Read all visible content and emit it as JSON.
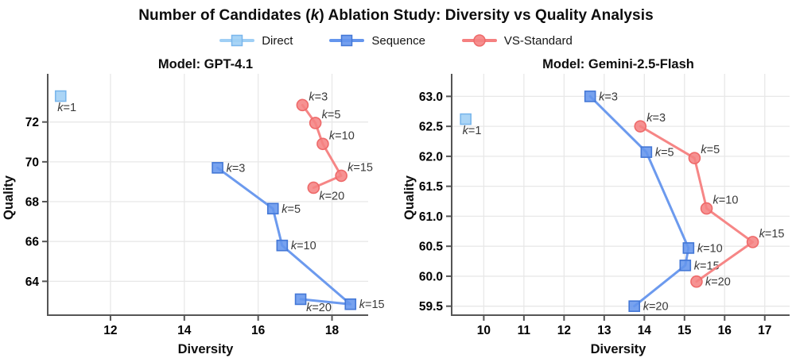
{
  "title": {
    "prefix": "Number of Candidates (",
    "italic": "k",
    "suffix": ") Ablation Study: Diversity vs Quality Analysis"
  },
  "legend": [
    {
      "label": "Direct",
      "marker": "square",
      "color_key": "direct"
    },
    {
      "label": "Sequence",
      "marker": "square",
      "color_key": "sequence"
    },
    {
      "label": "VS-Standard",
      "marker": "circle",
      "color_key": "vs"
    }
  ],
  "colors": {
    "direct": {
      "fill": "#9FCFF5",
      "edge": "#79B6EC",
      "line": "#9FCFF5"
    },
    "sequence": {
      "fill": "#6495ED",
      "edge": "#4377D6",
      "line": "#6495ED"
    },
    "vs": {
      "fill": "#F58383",
      "edge": "#EE6A6A",
      "line": "#F58080"
    },
    "grid": "#E8E8E8",
    "spine": "#555555",
    "tick_text": "#000000",
    "annotation_text": "#3A3A3A"
  },
  "chart_data": [
    {
      "type": "scatter",
      "title": "Model: GPT-4.1",
      "xlabel": "Diversity",
      "ylabel": "Quality",
      "xlim": [
        10.3,
        18.85
      ],
      "ylim": [
        62.3,
        74.1
      ],
      "grid": true,
      "legend_position": "figure-top",
      "xticks": {
        "values": [
          12,
          14,
          16,
          18
        ],
        "labels": [
          "12",
          "14",
          "16",
          "18"
        ]
      },
      "yticks": {
        "values": [
          64,
          66,
          68,
          70,
          72
        ],
        "labels": [
          "64",
          "66",
          "68",
          "70",
          "72"
        ]
      },
      "series": [
        {
          "name": "Direct",
          "marker": "square",
          "color_key": "direct",
          "connect": false,
          "points": [
            {
              "label": "k=1",
              "x": 10.65,
              "y": 73.3,
              "lpos": "b"
            }
          ]
        },
        {
          "name": "Sequence",
          "marker": "square",
          "color_key": "sequence",
          "connect": true,
          "points": [
            {
              "label": "k=3",
              "x": 14.9,
              "y": 69.7,
              "lpos": "r"
            },
            {
              "label": "k=5",
              "x": 16.4,
              "y": 67.65,
              "lpos": "r"
            },
            {
              "label": "k=10",
              "x": 16.65,
              "y": 65.8,
              "lpos": "r"
            },
            {
              "label": "k=15",
              "x": 18.5,
              "y": 62.85,
              "lpos": "r"
            },
            {
              "label": "k=20",
              "x": 17.15,
              "y": 63.1,
              "lpos": "br"
            }
          ]
        },
        {
          "name": "VS-Standard",
          "marker": "circle",
          "color_key": "vs",
          "connect": true,
          "points": [
            {
              "label": "k=3",
              "x": 17.2,
              "y": 72.85,
              "lpos": "ar"
            },
            {
              "label": "k=5",
              "x": 17.55,
              "y": 71.95,
              "lpos": "ar"
            },
            {
              "label": "k=10",
              "x": 17.75,
              "y": 70.9,
              "lpos": "ar"
            },
            {
              "label": "k=15",
              "x": 18.25,
              "y": 69.3,
              "lpos": "ar"
            },
            {
              "label": "k=20",
              "x": 17.5,
              "y": 68.7,
              "lpos": "br"
            }
          ]
        }
      ]
    },
    {
      "type": "scatter",
      "title": "Model: Gemini-2.5-Flash",
      "xlabel": "Diversity",
      "ylabel": "Quality",
      "xlim": [
        9.2,
        17.5
      ],
      "ylim": [
        59.35,
        63.27
      ],
      "grid": true,
      "legend_position": "figure-top",
      "xticks": {
        "values": [
          10,
          11,
          12,
          13,
          14,
          15,
          16,
          17
        ],
        "labels": [
          "10",
          "11",
          "12",
          "13",
          "14",
          "15",
          "16",
          "17"
        ]
      },
      "yticks": {
        "values": [
          59.5,
          60.0,
          60.5,
          61.0,
          61.5,
          62.0,
          62.5,
          63.0
        ],
        "labels": [
          "59.5",
          "60.0",
          "60.5",
          "61.0",
          "61.5",
          "62.0",
          "62.5",
          "63.0"
        ]
      },
      "series": [
        {
          "name": "Direct",
          "marker": "square",
          "color_key": "direct",
          "connect": false,
          "points": [
            {
              "label": "k=1",
              "x": 9.55,
              "y": 62.62,
              "lpos": "b"
            }
          ]
        },
        {
          "name": "Sequence",
          "marker": "square",
          "color_key": "sequence",
          "connect": true,
          "points": [
            {
              "label": "k=3",
              "x": 12.65,
              "y": 63.0,
              "lpos": "r"
            },
            {
              "label": "k=5",
              "x": 14.05,
              "y": 62.07,
              "lpos": "r"
            },
            {
              "label": "k=10",
              "x": 15.1,
              "y": 60.47,
              "lpos": "r"
            },
            {
              "label": "k=15",
              "x": 15.02,
              "y": 60.18,
              "lpos": "r"
            },
            {
              "label": "k=20",
              "x": 13.75,
              "y": 59.5,
              "lpos": "r"
            }
          ]
        },
        {
          "name": "VS-Standard",
          "marker": "circle",
          "color_key": "vs",
          "connect": true,
          "points": [
            {
              "label": "k=3",
              "x": 13.9,
              "y": 62.5,
              "lpos": "ar"
            },
            {
              "label": "k=5",
              "x": 15.25,
              "y": 61.97,
              "lpos": "ar"
            },
            {
              "label": "k=10",
              "x": 15.55,
              "y": 61.13,
              "lpos": "ar"
            },
            {
              "label": "k=15",
              "x": 16.7,
              "y": 60.57,
              "lpos": "ar"
            },
            {
              "label": "k=20",
              "x": 15.3,
              "y": 59.91,
              "lpos": "r"
            }
          ]
        }
      ]
    }
  ]
}
